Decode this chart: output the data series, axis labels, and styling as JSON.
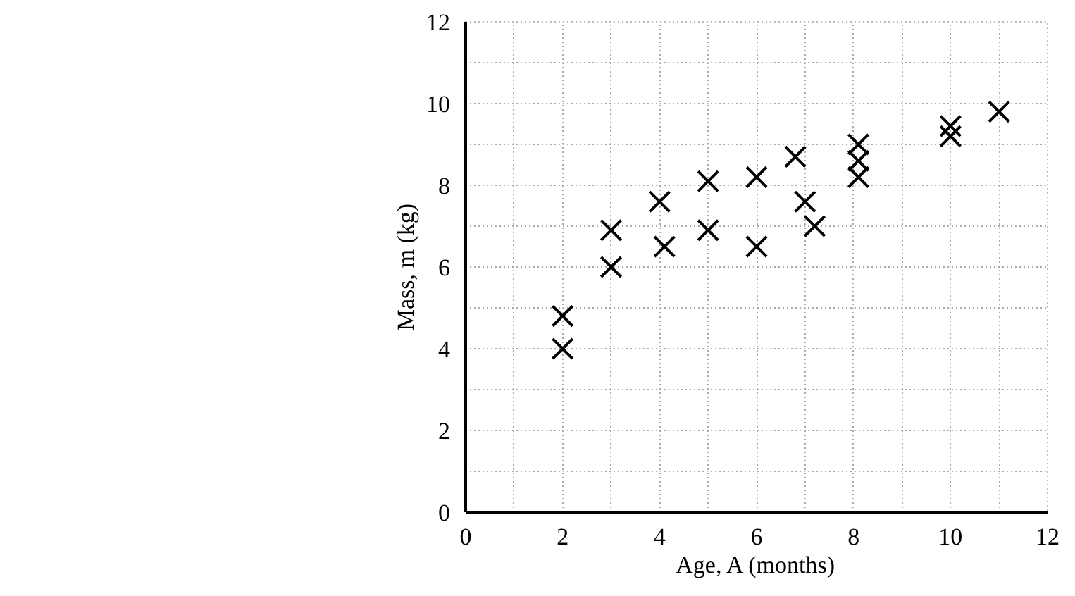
{
  "chart_data": {
    "type": "scatter",
    "xlabel": "Age, A (months)",
    "ylabel": "Mass, m (kg)",
    "x": [
      2,
      2,
      3,
      3,
      4,
      4.1,
      5,
      5,
      6,
      6,
      6.8,
      7,
      7.2,
      8.1,
      8.1,
      8.1,
      10,
      10,
      11
    ],
    "series": [
      {
        "color": "#000000",
        "values": [
          4.0,
          4.8,
          6.9,
          6.0,
          7.6,
          6.5,
          8.1,
          6.9,
          8.2,
          6.5,
          8.7,
          7.6,
          7.0,
          9.0,
          8.6,
          8.2,
          9.45,
          9.2,
          9.8
        ]
      }
    ],
    "marker": "cross",
    "grid": true,
    "xlim": [
      0,
      12
    ],
    "ylim": [
      0,
      12
    ],
    "xticks": [
      0,
      {
        "value": 1,
        "label": null
      },
      2,
      {
        "value": 3,
        "label": null
      },
      4,
      {
        "value": 5,
        "label": null
      },
      6,
      {
        "value": 7,
        "label": null
      },
      8,
      {
        "value": 9,
        "label": null
      },
      10,
      {
        "value": 11,
        "label": null
      },
      12
    ],
    "yticks": [
      0,
      {
        "value": 1,
        "label": null
      },
      2,
      {
        "value": 3,
        "label": null
      },
      4,
      {
        "value": 5,
        "label": null
      },
      6,
      {
        "value": 7,
        "label": null
      },
      8,
      {
        "value": 9,
        "label": null
      },
      10,
      {
        "value": 11,
        "label": null
      },
      12
    ]
  }
}
